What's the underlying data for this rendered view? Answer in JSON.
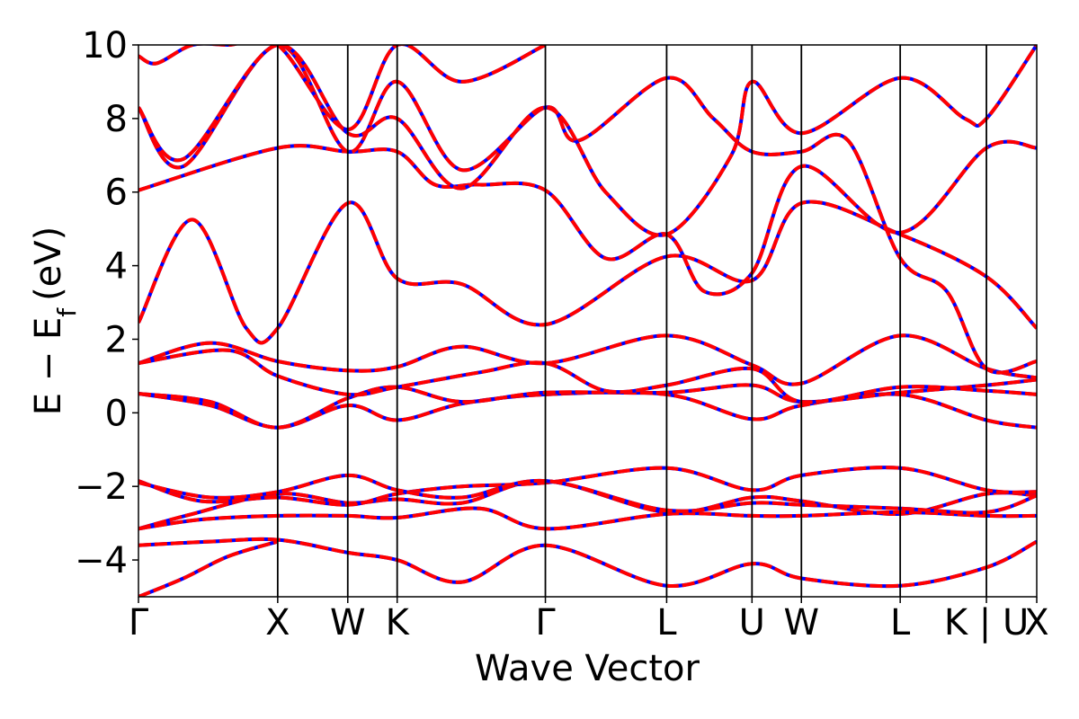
{
  "chart_data": {
    "type": "line",
    "title": "",
    "xlabel": "Wave Vector",
    "ylabel": "E − E",
    "ylabel_subscript": "f",
    "ylabel_unit": "(eV)",
    "ylim": [
      -5,
      10
    ],
    "yticks": [
      -4,
      -2,
      0,
      2,
      4,
      6,
      8,
      10
    ],
    "ytick_labels": [
      "−4",
      "−2",
      "0",
      "2",
      "4",
      "6",
      "8",
      "10"
    ],
    "grid": false,
    "xlim": [
      0,
      100
    ],
    "high_symmetry_points": [
      {
        "label": "Γ",
        "x": 0
      },
      {
        "label": "X",
        "x": 15.5
      },
      {
        "label": "W",
        "x": 23.3
      },
      {
        "label": "K",
        "x": 28.8
      },
      {
        "label": "Γ",
        "x": 45.3
      },
      {
        "label": "L",
        "x": 58.8
      },
      {
        "label": "U",
        "x": 68.3
      },
      {
        "label": "W",
        "x": 73.8
      },
      {
        "label": "L",
        "x": 84.8
      },
      {
        "label": "K | U",
        "x": 94.4
      },
      {
        "label": "X",
        "x": 100
      }
    ],
    "series_style": {
      "base_color": "#0000ff",
      "overlay_color": "#ff0000",
      "overlay_dash": "dashed"
    },
    "series": [
      {
        "x": [
          0,
          5,
          10,
          15.5
        ],
        "y": [
          -5.0,
          -4.5,
          -3.9,
          -3.5
        ]
      },
      {
        "x": [
          0,
          8,
          15.5,
          23.3,
          28.8,
          36,
          45.3,
          58.8,
          68.3,
          73.8,
          84.8,
          94.4,
          100
        ],
        "y": [
          -3.6,
          -3.5,
          -3.45,
          -3.8,
          -4.0,
          -4.6,
          -3.6,
          -4.7,
          -4.1,
          -4.5,
          -4.7,
          -4.2,
          -3.5
        ]
      },
      {
        "x": [
          0,
          6,
          15.5,
          23.3,
          28.8,
          36,
          45.3,
          58.8,
          68.3,
          73.8,
          84.8,
          94.4,
          100
        ],
        "y": [
          -3.15,
          -2.75,
          -2.2,
          -2.45,
          -2.35,
          -2.45,
          -1.85,
          -2.7,
          -2.3,
          -2.4,
          -2.75,
          -2.2,
          -2.25
        ]
      },
      {
        "x": [
          0,
          7,
          15.5,
          23.3,
          28.8,
          38,
          45.3,
          58.8,
          68.3,
          73.8,
          84.8,
          94.4,
          100
        ],
        "y": [
          -3.15,
          -2.9,
          -2.8,
          -2.8,
          -2.85,
          -2.6,
          -3.15,
          -2.75,
          -2.8,
          -2.8,
          -2.7,
          -2.8,
          -2.8
        ]
      },
      {
        "x": [
          0,
          7,
          15.5,
          23.3,
          28.8,
          36,
          45.3,
          58.8,
          68.3,
          73.8,
          84.8,
          94.4,
          100
        ],
        "y": [
          -1.85,
          -2.4,
          -2.3,
          -2.5,
          -2.2,
          -2.0,
          -1.9,
          -1.5,
          -2.1,
          -1.7,
          -1.5,
          -2.1,
          -2.15
        ]
      },
      {
        "x": [
          0,
          8,
          15.5,
          23.3,
          28.8,
          36,
          45.3,
          58.8,
          68.3,
          73.8,
          84.8,
          94.4,
          100
        ],
        "y": [
          -1.9,
          -2.3,
          -2.15,
          -1.7,
          -2.1,
          -2.3,
          -1.85,
          -2.65,
          -2.45,
          -2.5,
          -2.6,
          -2.7,
          -2.25
        ]
      },
      {
        "x": [
          0,
          8,
          15.5,
          23.3,
          28.8,
          36,
          45.3,
          58.8,
          68.3,
          73.8,
          84.8,
          94.4,
          100
        ],
        "y": [
          0.52,
          0.2,
          -0.4,
          0.2,
          -0.2,
          0.25,
          0.5,
          0.5,
          -0.17,
          0.2,
          0.5,
          -0.2,
          -0.4
        ]
      },
      {
        "x": [
          0,
          8,
          15.5,
          23.3,
          28.8,
          36,
          45.3,
          58.8,
          68.3,
          73.8,
          84.8,
          94.4,
          100
        ],
        "y": [
          0.52,
          0.3,
          -0.4,
          0.4,
          0.7,
          0.3,
          0.55,
          0.55,
          0.75,
          0.3,
          0.55,
          0.75,
          0.9
        ]
      },
      {
        "x": [
          0,
          8,
          15.5,
          23.3,
          28.8,
          36,
          45.3,
          58.8,
          68.3,
          73.8,
          84.8,
          94.4,
          100
        ],
        "y": [
          1.35,
          1.9,
          1.4,
          1.15,
          1.25,
          1.8,
          1.35,
          2.1,
          1.3,
          0.8,
          2.1,
          1.2,
          0.95
        ]
      },
      {
        "x": [
          0,
          10,
          15.5,
          23.3,
          28.8,
          38,
          45.3,
          52,
          58.8,
          68.3,
          73.8,
          84.8,
          94.4,
          100
        ],
        "y": [
          1.35,
          1.7,
          1.0,
          0.5,
          0.7,
          1.1,
          1.35,
          0.6,
          0.75,
          1.2,
          0.3,
          0.7,
          0.6,
          0.5
        ]
      },
      {
        "x": [
          0,
          6,
          12,
          15.5,
          23.3,
          28.8,
          36,
          45.3,
          58.8,
          68.3,
          73.8,
          84.8,
          94.4,
          100
        ],
        "y": [
          2.45,
          5.25,
          2.3,
          2.3,
          5.7,
          3.65,
          3.5,
          2.4,
          4.25,
          3.6,
          5.7,
          4.85,
          3.7,
          2.3
        ]
      },
      {
        "x": [
          0,
          15.5,
          23.3,
          28.8,
          33,
          38,
          45.3,
          52,
          58.8,
          63,
          68.3,
          73.8,
          84.8,
          94.4,
          100
        ],
        "y": [
          6.05,
          7.2,
          7.1,
          7.1,
          6.2,
          6.2,
          6.05,
          4.2,
          4.85,
          3.3,
          3.8,
          6.7,
          4.9,
          7.2,
          7.2
        ]
      },
      {
        "x": [
          0,
          5,
          15.5,
          23.3,
          28.8,
          36,
          45.3,
          49,
          58.8,
          64,
          68.3,
          73.8,
          79,
          84.8,
          90,
          94.4,
          100
        ],
        "y": [
          8.3,
          6.7,
          10.0,
          7.1,
          9.0,
          6.6,
          8.3,
          7.4,
          9.1,
          8.0,
          7.1,
          7.1,
          7.4,
          4.2,
          3.3,
          1.2,
          1.4
        ]
      },
      {
        "x": [
          0,
          5,
          15.5,
          23.3,
          28.8,
          36,
          45.3,
          52,
          58.8,
          66,
          68.3,
          73.8,
          84.8,
          92,
          94.4,
          100
        ],
        "y": [
          8.3,
          6.9,
          10.0,
          7.6,
          8.0,
          6.1,
          8.3,
          6.0,
          4.85,
          7.0,
          9.0,
          7.6,
          9.1,
          8.0,
          8.0,
          10.0
        ]
      },
      {
        "x": [
          0,
          2,
          6,
          10,
          15.5,
          23.3,
          28.8,
          36,
          45.3
        ],
        "y": [
          9.7,
          9.5,
          10.0,
          10.0,
          10.0,
          7.7,
          10.0,
          9.0,
          10.0
        ]
      }
    ]
  }
}
